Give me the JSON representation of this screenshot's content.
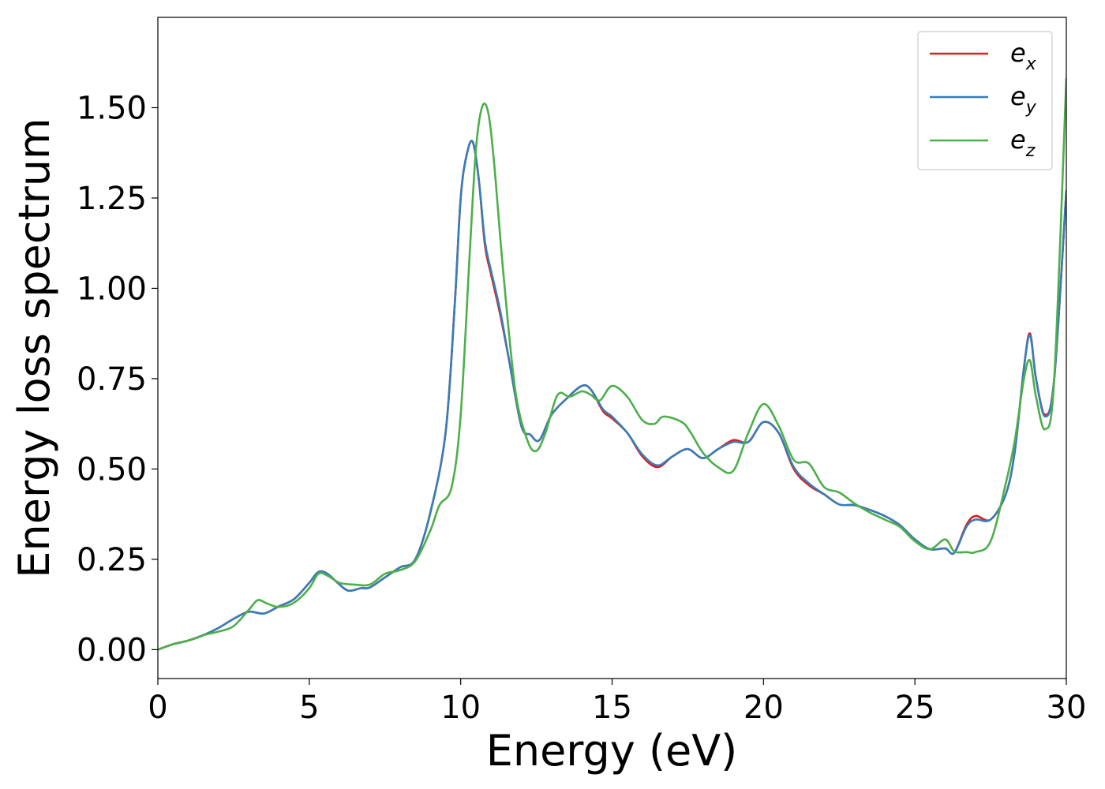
{
  "chart_data": {
    "type": "line",
    "xlabel": "Energy (eV)",
    "ylabel": "Energy loss spectrum",
    "xlim": [
      0,
      30
    ],
    "ylim": [
      -0.08,
      1.75
    ],
    "xticks": [
      0,
      5,
      10,
      15,
      20,
      25,
      30
    ],
    "xtick_labels": [
      "0",
      "5",
      "10",
      "15",
      "20",
      "25",
      "30"
    ],
    "yticks": [
      0.0,
      0.25,
      0.5,
      0.75,
      1.0,
      1.25,
      1.5
    ],
    "ytick_labels": [
      "0.00",
      "0.25",
      "0.50",
      "0.75",
      "1.00",
      "1.25",
      "1.50"
    ],
    "grid": false,
    "legend_position": "top-right",
    "series": [
      {
        "name": "e_x",
        "label_base": "e",
        "label_sub": "x",
        "color": "#e41a1c",
        "points": [
          [
            0,
            0
          ],
          [
            0.5,
            0.015
          ],
          [
            1.0,
            0.025
          ],
          [
            1.5,
            0.04
          ],
          [
            2.0,
            0.06
          ],
          [
            2.5,
            0.085
          ],
          [
            3.0,
            0.105
          ],
          [
            3.5,
            0.1
          ],
          [
            4.0,
            0.12
          ],
          [
            4.5,
            0.14
          ],
          [
            5.0,
            0.185
          ],
          [
            5.3,
            0.215
          ],
          [
            5.6,
            0.21
          ],
          [
            6.0,
            0.18
          ],
          [
            6.3,
            0.163
          ],
          [
            6.7,
            0.17
          ],
          [
            7.0,
            0.172
          ],
          [
            7.5,
            0.2
          ],
          [
            8.0,
            0.228
          ],
          [
            8.5,
            0.25
          ],
          [
            9.0,
            0.38
          ],
          [
            9.5,
            0.6
          ],
          [
            9.8,
            0.95
          ],
          [
            10.0,
            1.25
          ],
          [
            10.2,
            1.37
          ],
          [
            10.4,
            1.405
          ],
          [
            10.6,
            1.3
          ],
          [
            10.8,
            1.12
          ],
          [
            11.0,
            1.04
          ],
          [
            11.3,
            0.93
          ],
          [
            11.6,
            0.8
          ],
          [
            12.0,
            0.62
          ],
          [
            12.3,
            0.595
          ],
          [
            12.6,
            0.58
          ],
          [
            13.0,
            0.65
          ],
          [
            13.5,
            0.695
          ],
          [
            14.0,
            0.73
          ],
          [
            14.3,
            0.72
          ],
          [
            14.7,
            0.66
          ],
          [
            15.0,
            0.64
          ],
          [
            15.5,
            0.6
          ],
          [
            16.0,
            0.535
          ],
          [
            16.5,
            0.505
          ],
          [
            17.0,
            0.535
          ],
          [
            17.5,
            0.555
          ],
          [
            18.0,
            0.53
          ],
          [
            18.5,
            0.555
          ],
          [
            19.0,
            0.58
          ],
          [
            19.5,
            0.575
          ],
          [
            20.0,
            0.63
          ],
          [
            20.5,
            0.6
          ],
          [
            21.0,
            0.5
          ],
          [
            21.5,
            0.455
          ],
          [
            22.0,
            0.43
          ],
          [
            22.5,
            0.402
          ],
          [
            23.0,
            0.4
          ],
          [
            23.5,
            0.387
          ],
          [
            24.0,
            0.37
          ],
          [
            24.5,
            0.345
          ],
          [
            25.0,
            0.305
          ],
          [
            25.5,
            0.278
          ],
          [
            26.0,
            0.28
          ],
          [
            26.3,
            0.268
          ],
          [
            26.7,
            0.345
          ],
          [
            27.0,
            0.37
          ],
          [
            27.5,
            0.36
          ],
          [
            28.0,
            0.43
          ],
          [
            28.3,
            0.55
          ],
          [
            28.6,
            0.78
          ],
          [
            28.8,
            0.875
          ],
          [
            29.0,
            0.75
          ],
          [
            29.3,
            0.65
          ],
          [
            29.6,
            0.75
          ],
          [
            30.0,
            1.27
          ]
        ]
      },
      {
        "name": "e_y",
        "label_base": "e",
        "label_sub": "y",
        "color": "#377eb8",
        "points": [
          [
            0,
            0
          ],
          [
            0.5,
            0.015
          ],
          [
            1.0,
            0.025
          ],
          [
            1.5,
            0.04
          ],
          [
            2.0,
            0.06
          ],
          [
            2.5,
            0.085
          ],
          [
            3.0,
            0.105
          ],
          [
            3.5,
            0.1
          ],
          [
            4.0,
            0.12
          ],
          [
            4.5,
            0.14
          ],
          [
            5.0,
            0.185
          ],
          [
            5.3,
            0.215
          ],
          [
            5.6,
            0.21
          ],
          [
            6.0,
            0.18
          ],
          [
            6.3,
            0.163
          ],
          [
            6.7,
            0.17
          ],
          [
            7.0,
            0.172
          ],
          [
            7.5,
            0.2
          ],
          [
            8.0,
            0.228
          ],
          [
            8.5,
            0.25
          ],
          [
            9.0,
            0.38
          ],
          [
            9.5,
            0.6
          ],
          [
            9.8,
            0.95
          ],
          [
            10.0,
            1.25
          ],
          [
            10.2,
            1.37
          ],
          [
            10.4,
            1.405
          ],
          [
            10.6,
            1.3
          ],
          [
            10.8,
            1.13
          ],
          [
            11.0,
            1.05
          ],
          [
            11.3,
            0.94
          ],
          [
            11.6,
            0.8
          ],
          [
            12.0,
            0.62
          ],
          [
            12.3,
            0.595
          ],
          [
            12.6,
            0.58
          ],
          [
            13.0,
            0.65
          ],
          [
            13.5,
            0.695
          ],
          [
            14.0,
            0.73
          ],
          [
            14.3,
            0.72
          ],
          [
            14.7,
            0.665
          ],
          [
            15.0,
            0.645
          ],
          [
            15.5,
            0.6
          ],
          [
            16.0,
            0.54
          ],
          [
            16.5,
            0.51
          ],
          [
            17.0,
            0.535
          ],
          [
            17.5,
            0.555
          ],
          [
            18.0,
            0.53
          ],
          [
            18.5,
            0.555
          ],
          [
            19.0,
            0.575
          ],
          [
            19.5,
            0.575
          ],
          [
            20.0,
            0.63
          ],
          [
            20.5,
            0.6
          ],
          [
            21.0,
            0.505
          ],
          [
            21.5,
            0.46
          ],
          [
            22.0,
            0.43
          ],
          [
            22.5,
            0.402
          ],
          [
            23.0,
            0.4
          ],
          [
            23.5,
            0.387
          ],
          [
            24.0,
            0.37
          ],
          [
            24.5,
            0.345
          ],
          [
            25.0,
            0.305
          ],
          [
            25.5,
            0.278
          ],
          [
            26.0,
            0.28
          ],
          [
            26.3,
            0.268
          ],
          [
            26.7,
            0.34
          ],
          [
            27.0,
            0.36
          ],
          [
            27.5,
            0.36
          ],
          [
            28.0,
            0.43
          ],
          [
            28.3,
            0.55
          ],
          [
            28.6,
            0.78
          ],
          [
            28.8,
            0.87
          ],
          [
            29.0,
            0.75
          ],
          [
            29.3,
            0.645
          ],
          [
            29.6,
            0.75
          ],
          [
            30.0,
            1.27
          ]
        ]
      },
      {
        "name": "e_z",
        "label_base": "e",
        "label_sub": "z",
        "color": "#4daf4a",
        "points": [
          [
            0,
            0
          ],
          [
            0.5,
            0.015
          ],
          [
            1.0,
            0.025
          ],
          [
            1.5,
            0.04
          ],
          [
            2.0,
            0.05
          ],
          [
            2.5,
            0.065
          ],
          [
            3.0,
            0.11
          ],
          [
            3.3,
            0.137
          ],
          [
            3.6,
            0.128
          ],
          [
            4.0,
            0.118
          ],
          [
            4.5,
            0.13
          ],
          [
            5.0,
            0.17
          ],
          [
            5.3,
            0.21
          ],
          [
            5.6,
            0.205
          ],
          [
            6.0,
            0.185
          ],
          [
            6.5,
            0.18
          ],
          [
            7.0,
            0.18
          ],
          [
            7.5,
            0.21
          ],
          [
            8.0,
            0.22
          ],
          [
            8.5,
            0.245
          ],
          [
            9.0,
            0.33
          ],
          [
            9.3,
            0.4
          ],
          [
            9.7,
            0.45
          ],
          [
            10.0,
            0.65
          ],
          [
            10.3,
            1.1
          ],
          [
            10.5,
            1.38
          ],
          [
            10.7,
            1.5
          ],
          [
            10.9,
            1.49
          ],
          [
            11.1,
            1.35
          ],
          [
            11.4,
            1.05
          ],
          [
            11.8,
            0.72
          ],
          [
            12.2,
            0.58
          ],
          [
            12.5,
            0.55
          ],
          [
            12.8,
            0.6
          ],
          [
            13.2,
            0.705
          ],
          [
            13.6,
            0.7
          ],
          [
            14.0,
            0.715
          ],
          [
            14.3,
            0.705
          ],
          [
            14.6,
            0.69
          ],
          [
            15.0,
            0.73
          ],
          [
            15.5,
            0.7
          ],
          [
            16.0,
            0.635
          ],
          [
            16.4,
            0.625
          ],
          [
            16.7,
            0.645
          ],
          [
            17.3,
            0.63
          ],
          [
            17.6,
            0.6
          ],
          [
            18.0,
            0.545
          ],
          [
            18.5,
            0.505
          ],
          [
            19.0,
            0.495
          ],
          [
            19.5,
            0.6
          ],
          [
            20.0,
            0.68
          ],
          [
            20.5,
            0.62
          ],
          [
            21.0,
            0.525
          ],
          [
            21.5,
            0.515
          ],
          [
            22.0,
            0.45
          ],
          [
            22.5,
            0.435
          ],
          [
            23.0,
            0.405
          ],
          [
            23.5,
            0.38
          ],
          [
            24.0,
            0.36
          ],
          [
            24.5,
            0.34
          ],
          [
            25.0,
            0.3
          ],
          [
            25.5,
            0.278
          ],
          [
            26.0,
            0.305
          ],
          [
            26.3,
            0.272
          ],
          [
            26.7,
            0.27
          ],
          [
            27.0,
            0.27
          ],
          [
            27.5,
            0.3
          ],
          [
            28.0,
            0.46
          ],
          [
            28.3,
            0.58
          ],
          [
            28.6,
            0.75
          ],
          [
            28.8,
            0.8
          ],
          [
            29.0,
            0.7
          ],
          [
            29.3,
            0.61
          ],
          [
            29.6,
            0.75
          ],
          [
            30.0,
            1.58
          ]
        ]
      }
    ]
  }
}
